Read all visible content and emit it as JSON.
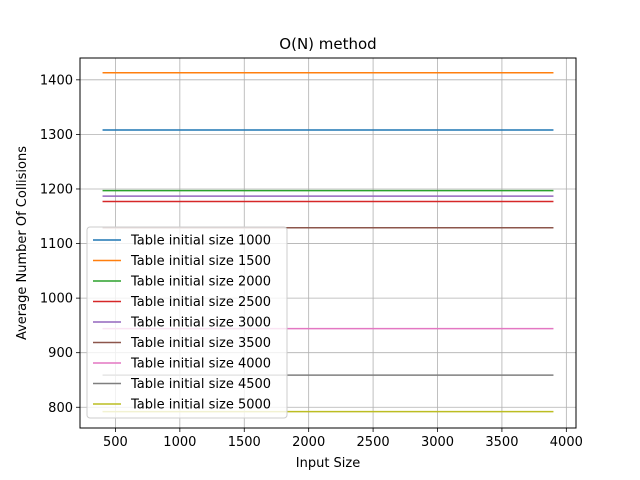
{
  "chart_data": {
    "type": "line",
    "title": "O(N) method",
    "xlabel": "Input Size",
    "ylabel": "Average Number Of Collisions",
    "xlim": [
      225,
      4075
    ],
    "ylim": [
      762,
      1440
    ],
    "xticks": [
      500,
      1000,
      1500,
      2000,
      2500,
      3000,
      3500,
      4000
    ],
    "yticks": [
      800,
      900,
      1000,
      1100,
      1200,
      1300,
      1400
    ],
    "grid": true,
    "legend_position": "lower-left",
    "x": [
      400,
      3900
    ],
    "series": [
      {
        "name": "Table initial size 1000",
        "color": "#1f77b4",
        "values": [
          1308,
          1308
        ]
      },
      {
        "name": "Table initial size 1500",
        "color": "#ff7f0e",
        "values": [
          1413,
          1413
        ]
      },
      {
        "name": "Table initial size 2000",
        "color": "#2ca02c",
        "values": [
          1197,
          1197
        ]
      },
      {
        "name": "Table initial size 2500",
        "color": "#d62728",
        "values": [
          1177,
          1177
        ]
      },
      {
        "name": "Table initial size 3000",
        "color": "#9467bd",
        "values": [
          1187,
          1187
        ]
      },
      {
        "name": "Table initial size 3500",
        "color": "#8c564b",
        "values": [
          1129,
          1129
        ]
      },
      {
        "name": "Table initial size 4000",
        "color": "#e377c2",
        "values": [
          944,
          944
        ]
      },
      {
        "name": "Table initial size 4500",
        "color": "#7f7f7f",
        "values": [
          859,
          859
        ]
      },
      {
        "name": "Table initial size 5000",
        "color": "#bcbd22",
        "values": [
          792,
          792
        ]
      }
    ]
  }
}
